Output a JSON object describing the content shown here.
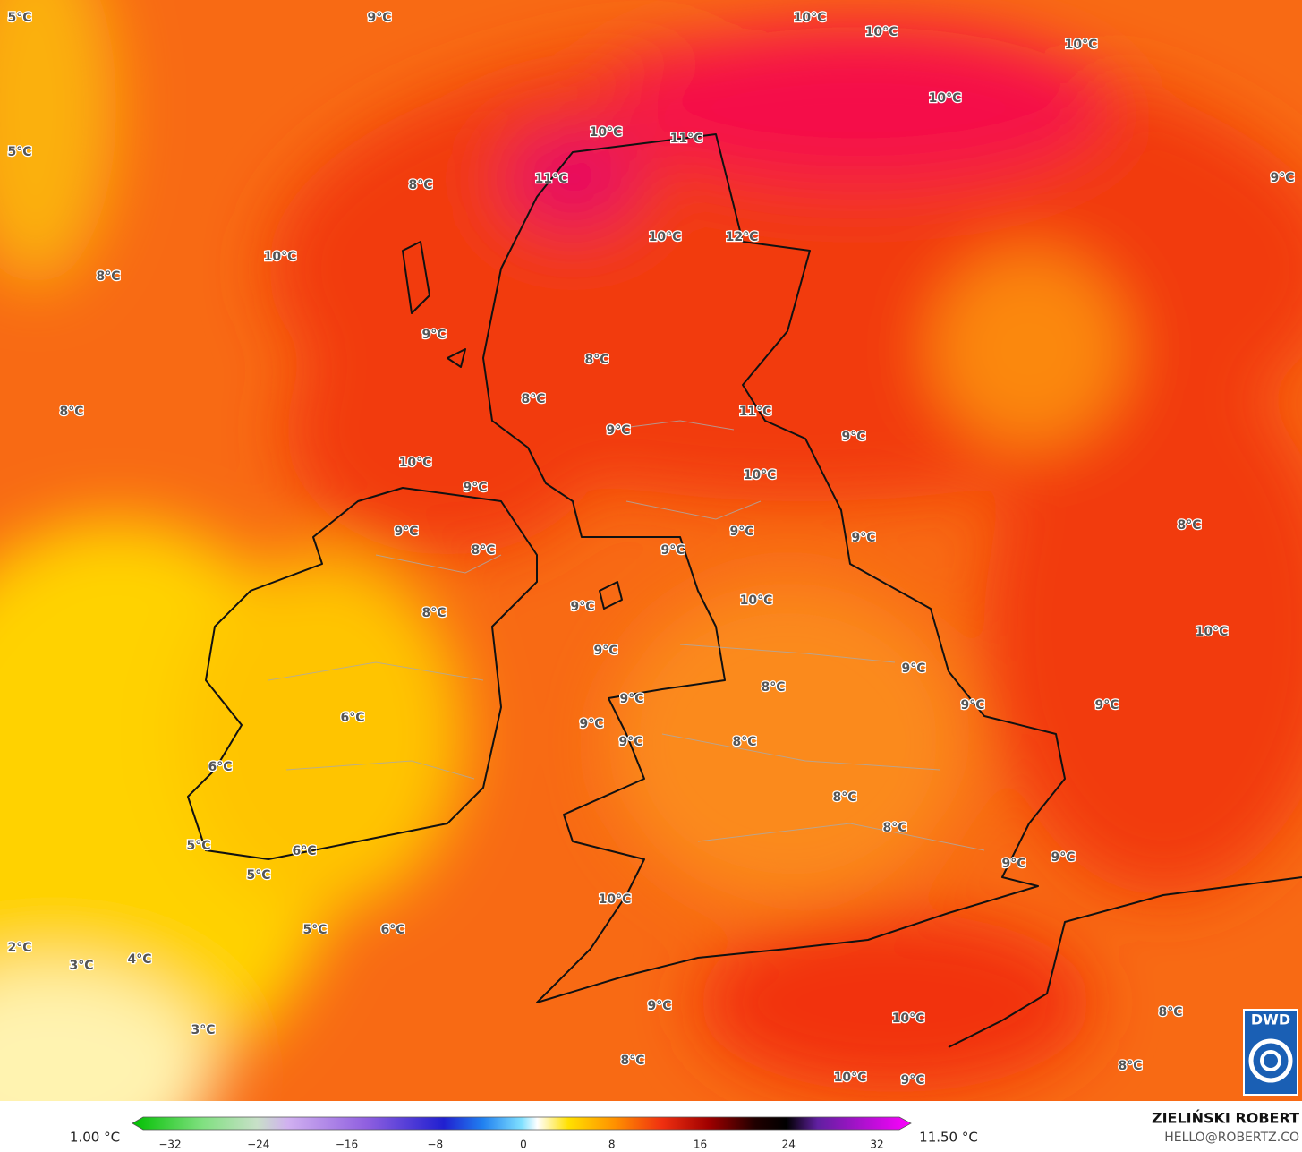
{
  "map": {
    "labels": [
      "5°C",
      "9°C",
      "10°C",
      "10°C",
      "10°C",
      "5°C",
      "10°C",
      "10°C",
      "11°C",
      "11°C",
      "8°C",
      "9°C",
      "10°C",
      "10°C",
      "12°C",
      "8°C",
      "9°C",
      "8°C",
      "8°C",
      "8°C",
      "11°C",
      "9°C",
      "9°C",
      "10°C",
      "10°C",
      "9°C",
      "9°C",
      "8°C",
      "8°C",
      "9°C",
      "9°C",
      "9°C",
      "9°C",
      "10°C",
      "8°C",
      "10°C",
      "9°C",
      "9°C",
      "8°C",
      "9°C",
      "9°C",
      "9°C",
      "6°C",
      "9°C",
      "9°C",
      "8°C",
      "6°C",
      "8°C",
      "8°C",
      "9°C",
      "9°C",
      "5°C",
      "6°C",
      "5°C",
      "10°C",
      "5°C",
      "6°C",
      "2°C",
      "3°C",
      "4°C",
      "3°C",
      "9°C",
      "10°C",
      "8°C",
      "8°C",
      "8°C",
      "10°C",
      "9°C"
    ],
    "logo": "DWD"
  },
  "colorbar": {
    "min": "1.00 °C",
    "max": "11.50 °C",
    "ticks": [
      "−32",
      "−24",
      "−16",
      "−8",
      "0",
      "8",
      "16",
      "24",
      "32"
    ]
  },
  "credit": {
    "name": "ZIELIŃSKI ROBERT",
    "email": "HELLO@ROBERTZ.CO"
  }
}
